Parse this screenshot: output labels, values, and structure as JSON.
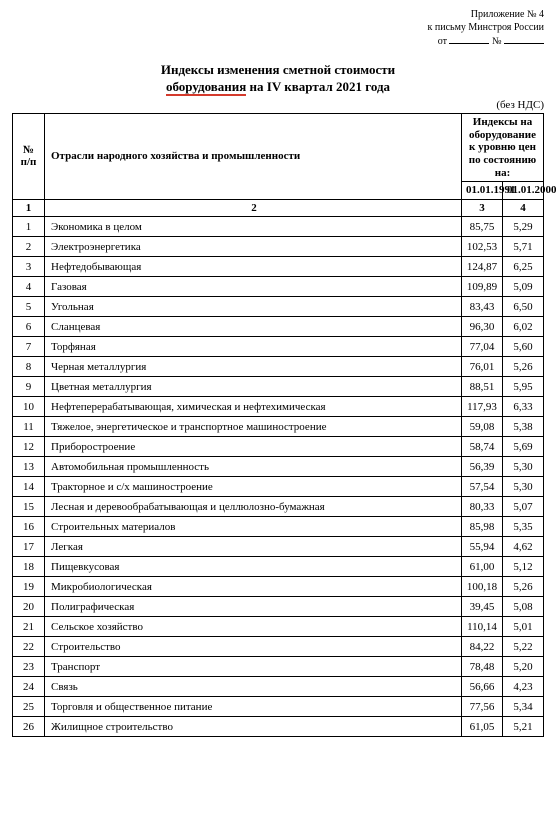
{
  "header": {
    "line1": "Приложение № 4",
    "line2": "к письму Минстроя России",
    "line3_prefix": "от",
    "line3_mid": "№"
  },
  "title": {
    "line1": "Индексы изменения сметной стоимости",
    "line2_underlined": "оборудования",
    "line2_rest": " на IV квартал 2021 года"
  },
  "vat_note": "(без НДС)",
  "table": {
    "header": {
      "num": "№ п/п",
      "name": "Отрасли народного хозяйства и промышленности",
      "group": "Индексы на оборудование к уровню цен по состоянию на:",
      "col3": "01.01.1991",
      "col4": "01.01.2000",
      "hn1": "1",
      "hn2": "2",
      "hn3": "3",
      "hn4": "4"
    },
    "rows": [
      {
        "n": "1",
        "name": "Экономика в целом",
        "v1": "85,75",
        "v2": "5,29"
      },
      {
        "n": "2",
        "name": "Электроэнергетика",
        "v1": "102,53",
        "v2": "5,71"
      },
      {
        "n": "3",
        "name": "Нефтедобывающая",
        "v1": "124,87",
        "v2": "6,25"
      },
      {
        "n": "4",
        "name": "Газовая",
        "v1": "109,89",
        "v2": "5,09"
      },
      {
        "n": "5",
        "name": "Угольная",
        "v1": "83,43",
        "v2": "6,50"
      },
      {
        "n": "6",
        "name": "Сланцевая",
        "v1": "96,30",
        "v2": "6,02"
      },
      {
        "n": "7",
        "name": "Торфяная",
        "v1": "77,04",
        "v2": "5,60"
      },
      {
        "n": "8",
        "name": "Черная металлургия",
        "v1": "76,01",
        "v2": "5,26"
      },
      {
        "n": "9",
        "name": "Цветная металлургия",
        "v1": "88,51",
        "v2": "5,95"
      },
      {
        "n": "10",
        "name": "Нефтеперерабатывающая, химическая и нефтехимическая",
        "v1": "117,93",
        "v2": "6,33"
      },
      {
        "n": "11",
        "name": "Тяжелое, энергетическое и транспортное машиностроение",
        "v1": "59,08",
        "v2": "5,38"
      },
      {
        "n": "12",
        "name": "Приборостроение",
        "v1": "58,74",
        "v2": "5,69"
      },
      {
        "n": "13",
        "name": "Автомобильная промышленность",
        "v1": "56,39",
        "v2": "5,30"
      },
      {
        "n": "14",
        "name": "Тракторное и с/х машиностроение",
        "v1": "57,54",
        "v2": "5,30"
      },
      {
        "n": "15",
        "name": "Лесная и деревообрабатывающая и целлюлозно-бумажная",
        "v1": "80,33",
        "v2": "5,07"
      },
      {
        "n": "16",
        "name": "Строительных материалов",
        "v1": "85,98",
        "v2": "5,35"
      },
      {
        "n": "17",
        "name": "Легкая",
        "v1": "55,94",
        "v2": "4,62"
      },
      {
        "n": "18",
        "name": "Пищевкусовая",
        "v1": "61,00",
        "v2": "5,12"
      },
      {
        "n": "19",
        "name": "Микробиологическая",
        "v1": "100,18",
        "v2": "5,26"
      },
      {
        "n": "20",
        "name": "Полиграфическая",
        "v1": "39,45",
        "v2": "5,08"
      },
      {
        "n": "21",
        "name": "Сельское хозяйство",
        "v1": "110,14",
        "v2": "5,01"
      },
      {
        "n": "22",
        "name": "Строительство",
        "v1": "84,22",
        "v2": "5,22"
      },
      {
        "n": "23",
        "name": "Транспорт",
        "v1": "78,48",
        "v2": "5,20"
      },
      {
        "n": "24",
        "name": "Связь",
        "v1": "56,66",
        "v2": "4,23"
      },
      {
        "n": "25",
        "name": "Торговля и общественное питание",
        "v1": "77,56",
        "v2": "5,34"
      },
      {
        "n": "26",
        "name": "Жилищное строительство",
        "v1": "61,05",
        "v2": "5,21"
      }
    ]
  }
}
